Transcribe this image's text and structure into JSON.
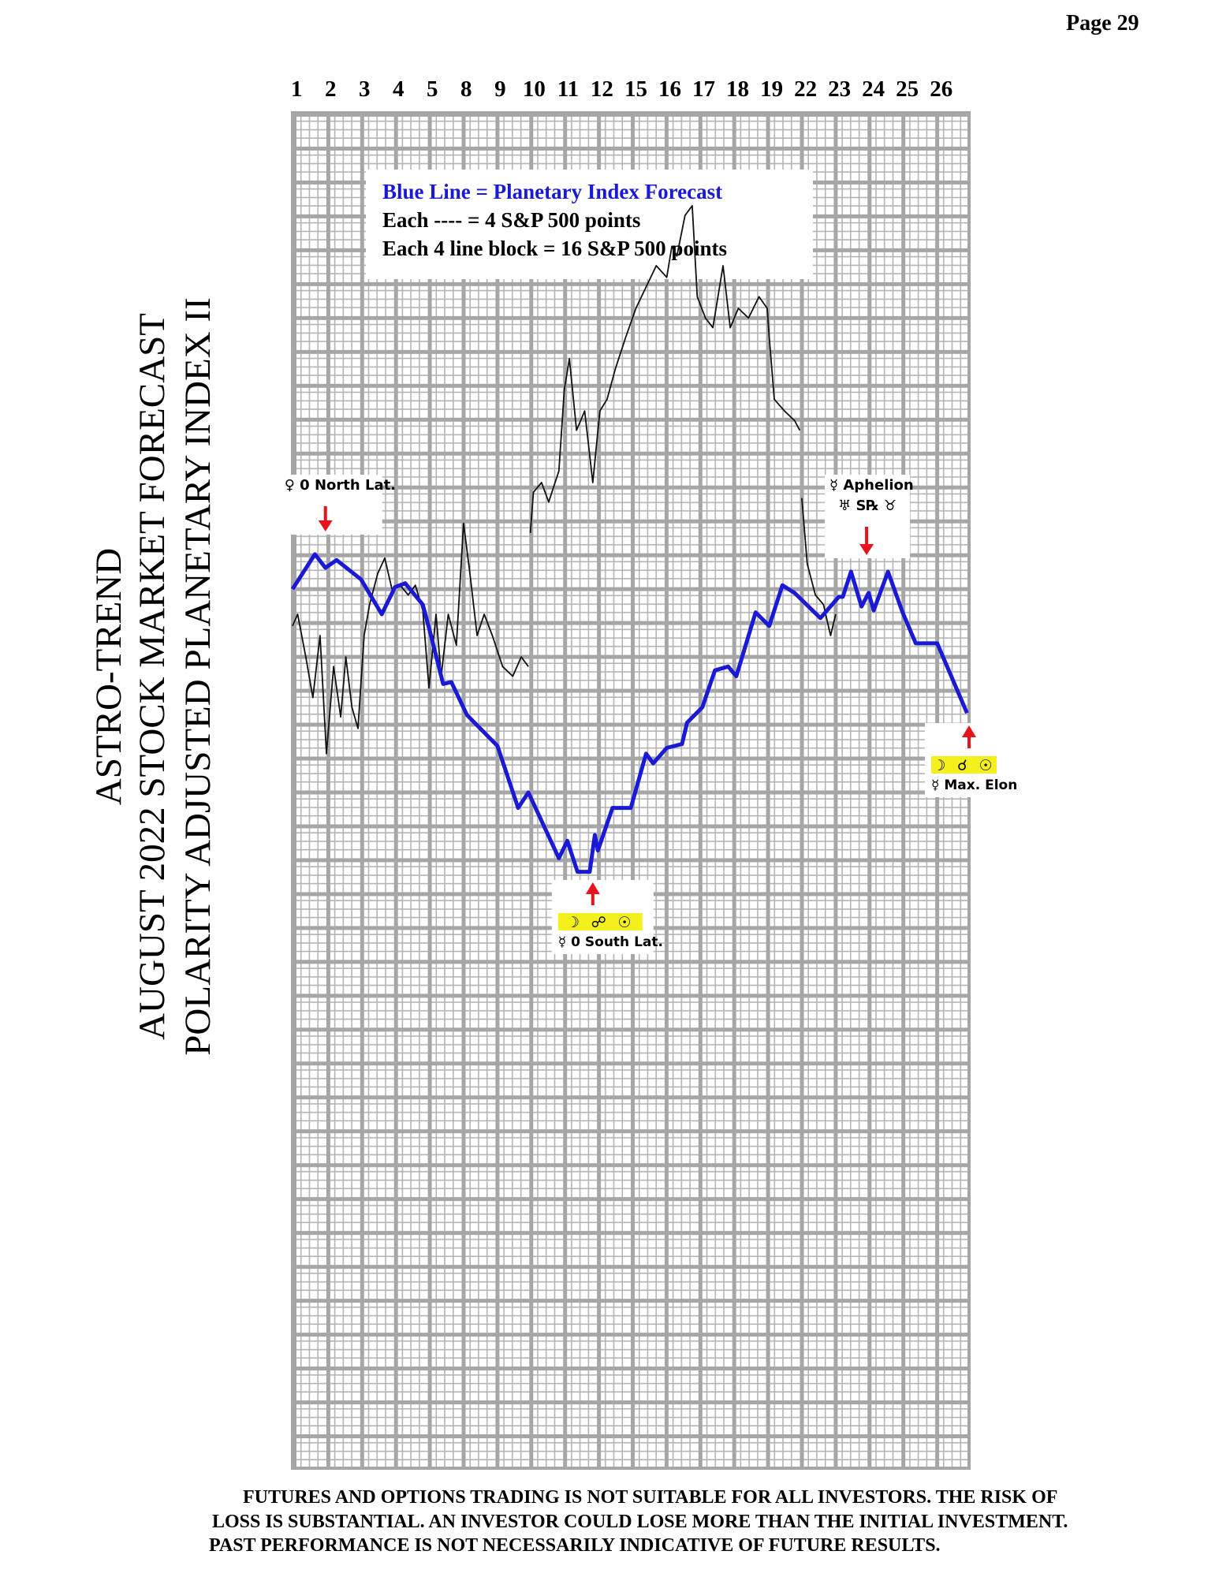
{
  "page": "Page  29",
  "disclaimer": [
    "FUTURES AND OPTIONS TRADING IS NOT SUITABLE FOR ALL INVESTORS.  THE RISK OF",
    "LOSS IS SUBSTANTIAL.  AN INVESTOR COULD LOSE MORE THAN THE INITIAL INVESTMENT.",
    "PAST PERFORMANCE IS NOT NECESSARILY INDICATIVE OF FUTURE RESULTS."
  ],
  "chart_data": {
    "type": "line",
    "title": [
      "ASTRO-TREND",
      "AUGUST 2022  STOCK MARKET FORECAST",
      "POLARITY ADJUSTED PLANETARY INDEX II"
    ],
    "categories": [
      "1",
      "2",
      "3",
      "4",
      "5",
      "8",
      "9",
      "10",
      "11",
      "12",
      "15",
      "16",
      "17",
      "18",
      "19",
      "22",
      "23",
      "24",
      "25",
      "26"
    ],
    "legend_text": [
      "Blue Line = Planetary Index Forecast",
      "Each ---- =   4 S&P 500 points",
      "Each 4 line block =  16  S&P 500 points"
    ],
    "xlim": [
      -0.12,
      19.82
    ],
    "ylim": [
      0,
      700
    ],
    "grid": true,
    "series": [
      {
        "color": "#111111",
        "x": [
          -0.12,
          0.03,
          0.27,
          0.48,
          0.69,
          0.88,
          1.09,
          1.3,
          1.45,
          1.63,
          1.81,
          1.99,
          2.15,
          2.39,
          2.6,
          2.81,
          3.05,
          3.29,
          3.5,
          3.72,
          3.9,
          4.11,
          4.26,
          4.47,
          4.71,
          4.92,
          5.11,
          5.32,
          5.53,
          5.77,
          6.07,
          6.37,
          6.62,
          6.83,
          null,
          6.89,
          6.98,
          7.22,
          7.43,
          7.73,
          7.89,
          8.04,
          8.25,
          8.49,
          8.73,
          8.94,
          9.15,
          9.4,
          9.7,
          10.0,
          10.3,
          10.6,
          10.91,
          11.06,
          11.21,
          11.45,
          11.66,
          11.81,
          12.05,
          12.27,
          12.57,
          12.78,
          13.02,
          13.32,
          13.63,
          13.87,
          13.93,
          14.08,
          14.38,
          14.68,
          14.83,
          null,
          14.89,
          15.05,
          15.29,
          15.53,
          15.74,
          15.89
        ],
        "values": [
          435,
          441,
          419,
          398,
          430,
          369,
          414,
          388,
          419,
          393,
          382,
          430,
          446,
          462,
          470,
          454,
          456,
          451,
          456,
          443,
          403,
          441,
          409,
          441,
          425,
          488,
          462,
          430,
          441,
          430,
          414,
          409,
          419,
          414,
          null,
          483,
          504,
          509,
          499,
          515,
          557,
          573,
          536,
          546,
          509,
          546,
          552,
          568,
          584,
          599,
          610,
          621,
          615,
          631,
          626,
          647,
          652,
          605,
          594,
          589,
          621,
          589,
          599,
          594,
          605,
          599,
          584,
          552,
          546,
          541,
          536,
          null,
          501,
          467,
          451,
          446,
          430,
          441
        ]
      },
      {
        "color": "#1a1ad6",
        "x": [
          -0.12,
          0.54,
          0.85,
          1.18,
          1.9,
          2.51,
          2.9,
          3.2,
          3.72,
          3.96,
          4.32,
          4.56,
          5.02,
          5.92,
          6.53,
          6.83,
          7.73,
          7.98,
          8.28,
          8.64,
          8.79,
          8.88,
          9.31,
          9.85,
          10.3,
          10.51,
          10.91,
          11.36,
          11.51,
          11.96,
          12.33,
          12.72,
          12.96,
          13.53,
          13.93,
          14.32,
          14.68,
          15.44,
          15.98,
          16.1,
          16.34,
          16.65,
          16.86,
          17.01,
          17.43,
          17.86,
          18.25,
          18.88,
          19.76
        ],
        "values": [
          454,
          472,
          465,
          469,
          459,
          441,
          455,
          457,
          446,
          430,
          405,
          406,
          389,
          373,
          341,
          349,
          315,
          324,
          308,
          308,
          327,
          319,
          341,
          341,
          369,
          364,
          372,
          374,
          385,
          393,
          412,
          414,
          409,
          442,
          435,
          456,
          452,
          439,
          450,
          450,
          463,
          445,
          452,
          443,
          463,
          442,
          426,
          426,
          390
        ]
      }
    ],
    "annotations": [
      {
        "x": 0.85,
        "position": "above",
        "text": [
          "♀ 0 North Lat."
        ]
      },
      {
        "x": 16.8,
        "position": "above",
        "text": [
          "☿ Aphelion",
          "♅ S℞ ♉"
        ]
      },
      {
        "x": 8.73,
        "position": "below",
        "symbols": "☽ ☍ ☉",
        "text": [
          "☿ 0 South Lat."
        ]
      },
      {
        "x": 19.82,
        "position": "below",
        "symbols": "☽ ☌ ☉",
        "text": [
          "☿ Max. Elon"
        ]
      }
    ]
  }
}
